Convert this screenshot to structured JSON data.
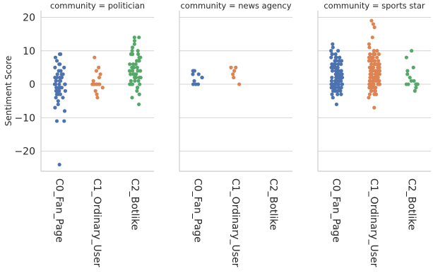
{
  "chart_data": {
    "type": "scatter",
    "subtype": "strip",
    "ylabel": "Sentiment Score",
    "ylim": [
      -26,
      22
    ],
    "yticks": [
      20,
      10,
      0,
      -10,
      -20
    ],
    "ytick_labels": [
      "20",
      "10",
      "0",
      "−10",
      "−20"
    ],
    "categories": [
      "C0_Fan_Page",
      "C1_Ordinary_User",
      "C2_Botlike"
    ],
    "colors": {
      "C0_Fan_Page": "#4c72b0",
      "C1_Ordinary_User": "#dd8452",
      "C2_Botlike": "#55a868"
    },
    "grid": "horizontal",
    "facets": [
      {
        "title": "community = politician",
        "series": [
          {
            "category": "C0_Fan_Page",
            "values": [
              9,
              9,
              8,
              7,
              6,
              6,
              5,
              5,
              4,
              4,
              3,
              3,
              3,
              2,
              2,
              2,
              2,
              1,
              1,
              1,
              1,
              0,
              0,
              0,
              0,
              0,
              0,
              -1,
              -1,
              -1,
              -1,
              -2,
              -2,
              -2,
              -2,
              -3,
              -3,
              -3,
              -4,
              -4,
              -5,
              -6,
              -7,
              -8,
              -11,
              -11,
              -24
            ]
          },
          {
            "category": "C1_Ordinary_User",
            "values": [
              8,
              5,
              4,
              3,
              2,
              1,
              0,
              0,
              0,
              0,
              0,
              0,
              0,
              -1,
              -2,
              -3,
              -4
            ]
          },
          {
            "category": "C2_Botlike",
            "values": [
              14,
              14,
              13,
              12,
              11,
              10,
              10,
              9,
              9,
              9,
              8,
              8,
              8,
              7,
              7,
              7,
              6,
              6,
              6,
              5,
              5,
              5,
              5,
              4,
              4,
              4,
              4,
              3,
              3,
              3,
              3,
              2,
              2,
              2,
              2,
              1,
              1,
              1,
              0,
              0,
              0,
              0,
              -1,
              -1,
              -2,
              -3,
              -4,
              -6
            ]
          }
        ]
      },
      {
        "title": "community = news agency",
        "series": [
          {
            "category": "C0_Fan_Page",
            "values": [
              4,
              4,
              4,
              3,
              3,
              2,
              2,
              1,
              0,
              0,
              0
            ]
          },
          {
            "category": "C1_Ordinary_User",
            "values": [
              5,
              5,
              4,
              3,
              2,
              0
            ]
          },
          {
            "category": "C2_Botlike",
            "values": []
          }
        ]
      },
      {
        "title": "community = sports star",
        "series": [
          {
            "category": "C0_Fan_Page",
            "values": [
              12,
              11,
              10,
              10,
              9,
              9,
              9,
              8,
              8,
              8,
              8,
              7,
              7,
              7,
              7,
              7,
              6,
              6,
              6,
              6,
              6,
              6,
              5,
              5,
              5,
              5,
              5,
              5,
              5,
              4,
              4,
              4,
              4,
              4,
              4,
              4,
              4,
              3,
              3,
              3,
              3,
              3,
              3,
              3,
              3,
              3,
              2,
              2,
              2,
              2,
              2,
              2,
              2,
              2,
              2,
              2,
              1,
              1,
              1,
              1,
              1,
              1,
              1,
              1,
              1,
              1,
              0,
              0,
              0,
              0,
              0,
              0,
              0,
              0,
              0,
              0,
              0,
              -1,
              -1,
              -1,
              -1,
              -1,
              -1,
              -1,
              -1,
              -2,
              -2,
              -2,
              -2,
              -2,
              -2,
              -3,
              -3,
              -3,
              -4,
              -6
            ]
          },
          {
            "category": "C1_Ordinary_User",
            "values": [
              19,
              18,
              17,
              14,
              12,
              11,
              10,
              10,
              9,
              9,
              9,
              9,
              8,
              8,
              8,
              8,
              8,
              7,
              7,
              7,
              7,
              7,
              7,
              6,
              6,
              6,
              6,
              6,
              6,
              5,
              5,
              5,
              5,
              5,
              5,
              5,
              4,
              4,
              4,
              4,
              4,
              4,
              4,
              4,
              3,
              3,
              3,
              3,
              3,
              3,
              3,
              3,
              3,
              2,
              2,
              2,
              2,
              2,
              2,
              2,
              2,
              2,
              2,
              1,
              1,
              1,
              1,
              1,
              1,
              1,
              1,
              1,
              1,
              0,
              0,
              0,
              0,
              0,
              0,
              0,
              0,
              0,
              0,
              0,
              -1,
              -1,
              -1,
              -1,
              -1,
              -1,
              -1,
              -2,
              -2,
              -2,
              -2,
              -2,
              -3,
              -3,
              -3,
              -4,
              -7
            ]
          },
          {
            "category": "C2_Botlike",
            "values": [
              10,
              8,
              5,
              4,
              3,
              2,
              1,
              1,
              0,
              0,
              0,
              0,
              0,
              0,
              -1,
              -2
            ]
          }
        ]
      }
    ]
  }
}
